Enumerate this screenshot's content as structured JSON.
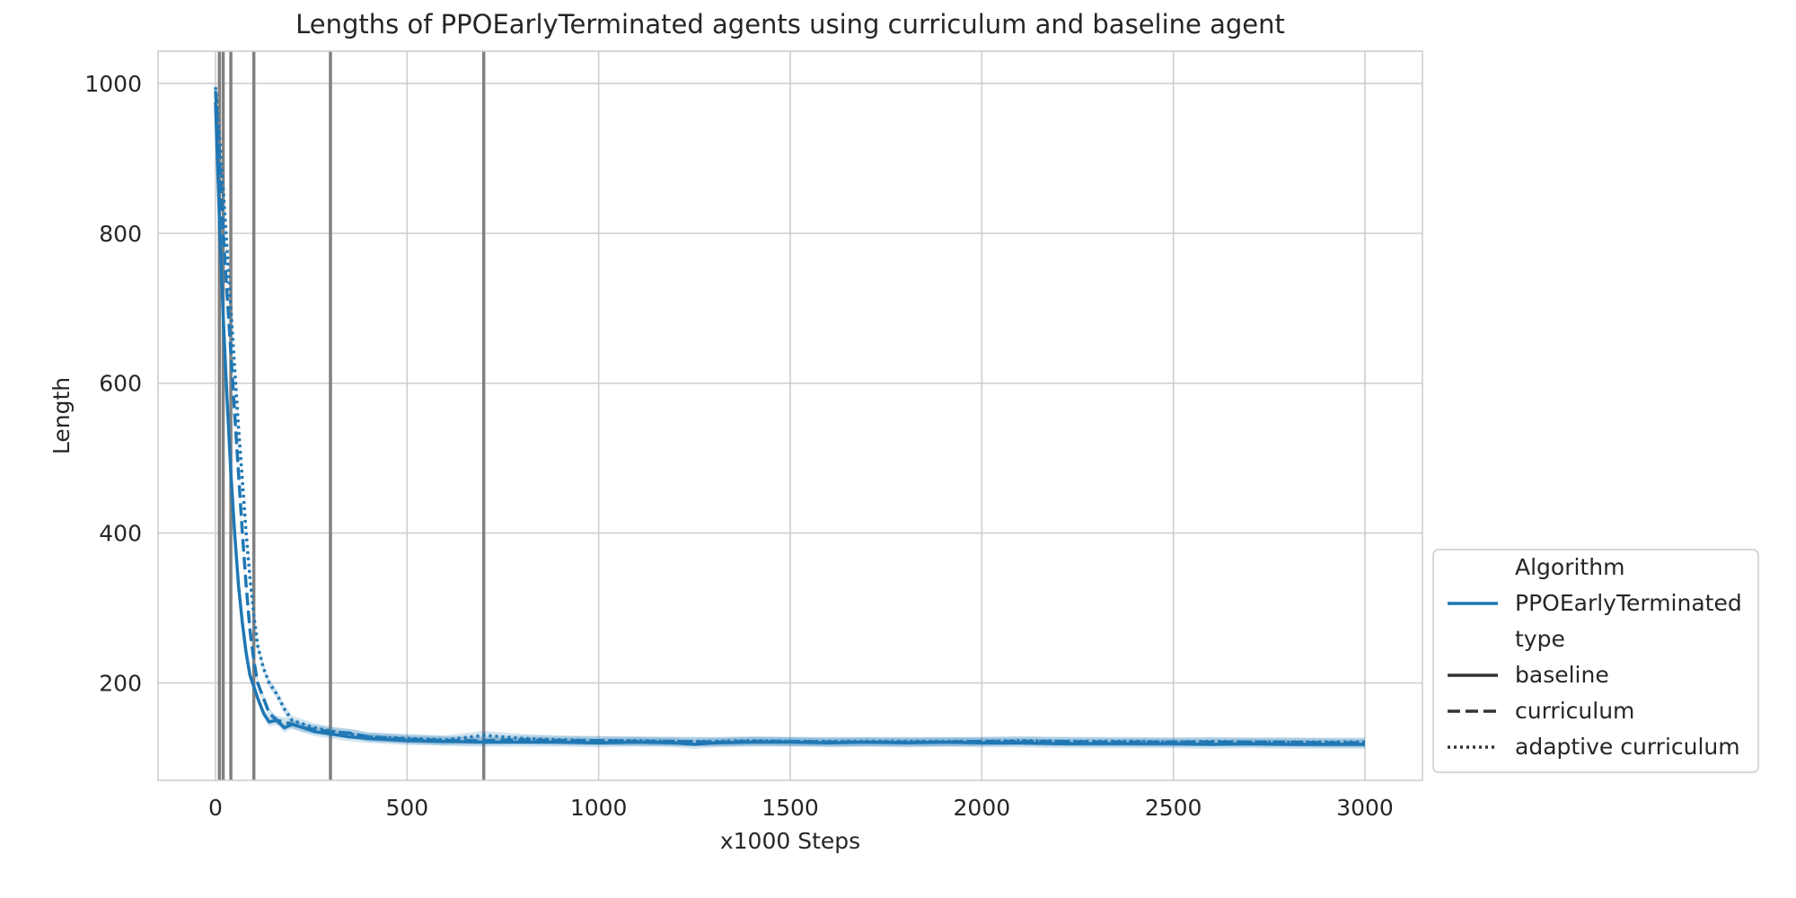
{
  "chart_data": {
    "type": "line",
    "title": "Lengths of PPOEarlyTerminated agents using curriculum and baseline agent",
    "xlabel": "x1000 Steps",
    "ylabel": "Length",
    "xlim": [
      -150,
      3150
    ],
    "ylim": [
      70,
      1043
    ],
    "xticks": [
      0,
      500,
      1000,
      1500,
      2000,
      2500,
      3000
    ],
    "yticks": [
      200,
      400,
      600,
      800,
      1000
    ],
    "grid": true,
    "vertical_lines": [
      10,
      20,
      40,
      100,
      300,
      700
    ],
    "vertical_line_color": "#808080",
    "series_color": "#1f77b4",
    "legend": {
      "placement": "lower-right outside",
      "entries": [
        {
          "label": "Algorithm",
          "style": "header"
        },
        {
          "label": "PPOEarlyTerminated",
          "style": "color"
        },
        {
          "label": "type",
          "style": "header"
        },
        {
          "label": "baseline",
          "style": "solid"
        },
        {
          "label": "curriculum",
          "style": "dashed"
        },
        {
          "label": "adaptive curriculum",
          "style": "dotted"
        }
      ]
    },
    "series": [
      {
        "name": "baseline",
        "dash": "solid",
        "x": [
          0,
          10,
          20,
          30,
          40,
          50,
          60,
          70,
          80,
          90,
          100,
          110,
          125,
          140,
          160,
          180,
          200,
          230,
          260,
          300,
          350,
          400,
          500,
          600,
          700,
          800,
          900,
          1000,
          1100,
          1200,
          1250,
          1300,
          1400,
          1500,
          1600,
          1700,
          1800,
          1900,
          2000,
          2100,
          2200,
          2300,
          2400,
          2500,
          2600,
          2700,
          2800,
          2900,
          3000
        ],
        "y": [
          975,
          820,
          690,
          580,
          480,
          400,
          330,
          280,
          240,
          210,
          195,
          180,
          160,
          148,
          150,
          140,
          145,
          140,
          135,
          132,
          128,
          126,
          123,
          122,
          121,
          121,
          121,
          120,
          121,
          120,
          118,
          120,
          121,
          121,
          120,
          121,
          120,
          121,
          120,
          120,
          119,
          119,
          119,
          119,
          118,
          119,
          118,
          118,
          118
        ]
      },
      {
        "name": "curriculum",
        "dash": "dashed",
        "x": [
          0,
          10,
          20,
          30,
          40,
          50,
          60,
          70,
          80,
          90,
          100,
          110,
          125,
          140,
          160,
          180,
          200,
          230,
          260,
          300,
          350,
          400,
          500,
          600,
          700,
          800,
          900,
          1000,
          1100,
          1200,
          1300,
          1400,
          1500,
          1600,
          1700,
          1800,
          1900,
          2000,
          2100,
          2200,
          2300,
          2400,
          2500,
          2600,
          2700,
          2800,
          2900,
          3000
        ],
        "y": [
          990,
          900,
          800,
          720,
          640,
          560,
          480,
          400,
          330,
          270,
          230,
          200,
          180,
          160,
          150,
          148,
          145,
          140,
          138,
          135,
          133,
          128,
          125,
          123,
          123,
          124,
          123,
          123,
          122,
          122,
          121,
          122,
          122,
          121,
          121,
          121,
          121,
          122,
          122,
          122,
          121,
          121,
          121,
          121,
          121,
          121,
          120,
          120
        ]
      },
      {
        "name": "adaptive curriculum",
        "dash": "dotted",
        "x": [
          0,
          10,
          20,
          30,
          40,
          50,
          60,
          70,
          80,
          90,
          100,
          110,
          125,
          140,
          160,
          180,
          200,
          230,
          260,
          300,
          350,
          400,
          500,
          600,
          700,
          800,
          900,
          1000,
          1100,
          1200,
          1300,
          1400,
          1500,
          1600,
          1700,
          1800,
          1900,
          2000,
          2100,
          2200,
          2300,
          2400,
          2500,
          2600,
          2700,
          2800,
          2900,
          3000
        ],
        "y": [
          995,
          930,
          860,
          780,
          700,
          620,
          540,
          470,
          400,
          340,
          290,
          250,
          220,
          200,
          185,
          165,
          150,
          145,
          140,
          136,
          132,
          128,
          126,
          124,
          130,
          126,
          124,
          123,
          123,
          122,
          122,
          123,
          122,
          122,
          122,
          122,
          122,
          122,
          123,
          122,
          122,
          122,
          121,
          122,
          121,
          121,
          121,
          121
        ]
      }
    ]
  }
}
